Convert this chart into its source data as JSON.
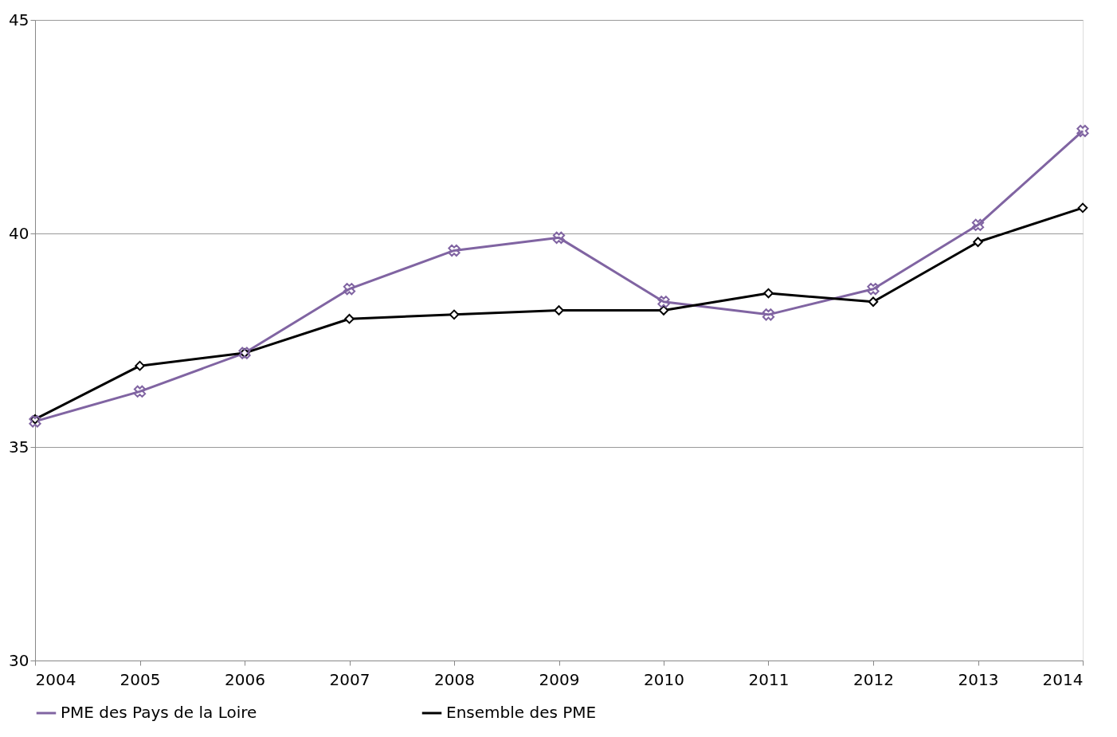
{
  "chart_data": {
    "type": "line",
    "categories": [
      "2004",
      "2005",
      "2006",
      "2007",
      "2008",
      "2009",
      "2010",
      "2011",
      "2012",
      "2013",
      "2014"
    ],
    "series": [
      {
        "name": "PME des Pays de la Loire",
        "color": "#8064a2",
        "marker": "cross",
        "values": [
          35.6,
          36.3,
          37.2,
          38.7,
          39.6,
          39.9,
          38.4,
          38.1,
          38.7,
          40.2,
          42.4
        ]
      },
      {
        "name": "Ensemble des PME",
        "color": "#000000",
        "marker": "diamond",
        "values": [
          35.65,
          36.9,
          37.2,
          38.0,
          38.1,
          38.2,
          38.2,
          38.6,
          38.4,
          39.8,
          40.6
        ]
      }
    ],
    "ylim": [
      30,
      45
    ],
    "yticks": [
      30,
      35,
      40,
      45
    ],
    "grid": "y",
    "legend": "bottom",
    "line_style": "solid"
  }
}
